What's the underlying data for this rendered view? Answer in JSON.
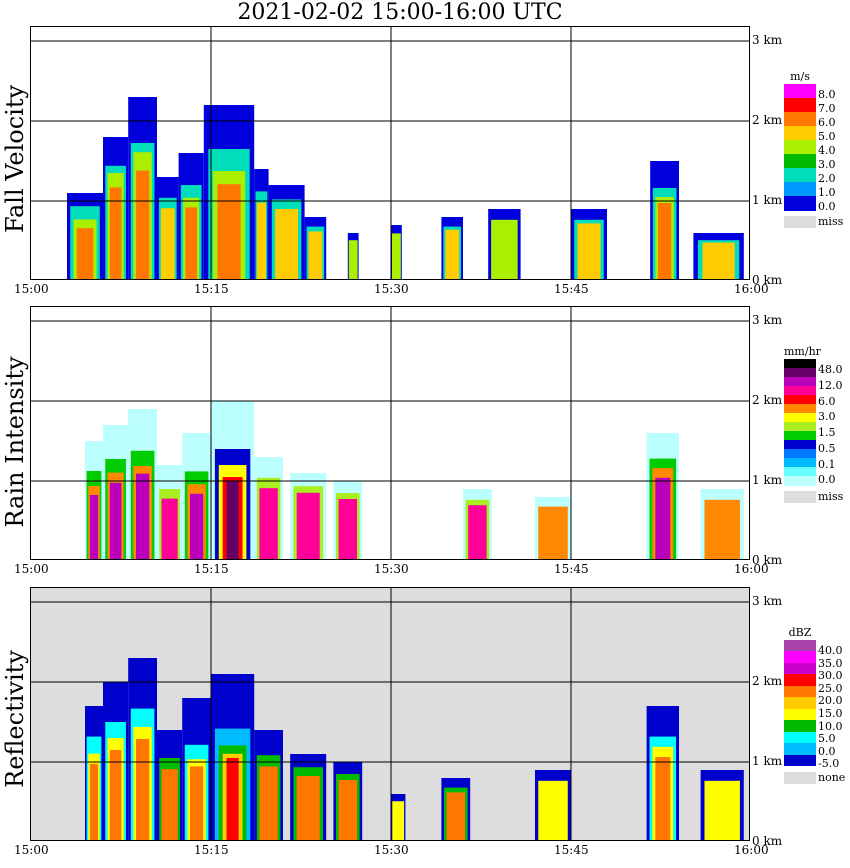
{
  "title": "2021-02-02   15:00-16:00 UTC",
  "x_ticks": [
    "15:00",
    "15:15",
    "15:30",
    "15:45",
    "16:00"
  ],
  "y_ticks": [
    "0 km",
    "1 km",
    "2 km",
    "3 km"
  ],
  "chart_data": [
    {
      "type": "heatmap",
      "title": "Fall Velocity",
      "unit": "m/s",
      "xlim": [
        "15:00",
        "16:00"
      ],
      "ylim_km": [
        0,
        3.1
      ],
      "legend": {
        "labels": [
          "8.0",
          "7.0",
          "6.0",
          "5.0",
          "4.0",
          "3.0",
          "2.0",
          "1.0",
          "0.0"
        ],
        "colors": [
          "#ff00ff",
          "#ff0000",
          "#ff7700",
          "#ffcc00",
          "#aaee00",
          "#00bb00",
          "#00ddbb",
          "#0099ff",
          "#0000dd"
        ],
        "missing_label": "miss"
      },
      "cells": [
        {
          "t0": 15.05,
          "t1": 15.1,
          "h": 1.1,
          "cs": [
            0.3,
            0.6,
            0.8
          ]
        },
        {
          "t0": 15.1,
          "t1": 15.135,
          "h": 1.8,
          "cs": [
            0.4,
            0.5,
            0.7
          ]
        },
        {
          "t0": 15.135,
          "t1": 15.175,
          "h": 2.3,
          "cs": [
            0.5,
            0.6,
            0.8
          ]
        },
        {
          "t0": 15.175,
          "t1": 15.205,
          "h": 1.3,
          "cs": [
            0.4,
            0.6
          ]
        },
        {
          "t0": 15.205,
          "t1": 15.24,
          "h": 1.6,
          "cs": [
            0.5,
            0.7,
            0.85
          ]
        },
        {
          "t0": 15.24,
          "t1": 15.31,
          "h": 2.2,
          "cs": [
            0.5,
            0.75,
            0.9
          ]
        },
        {
          "t0": 15.31,
          "t1": 15.33,
          "h": 1.4,
          "cs": [
            0.4,
            0.6
          ]
        },
        {
          "t0": 15.33,
          "t1": 15.38,
          "h": 1.2,
          "cs": [
            0.3,
            0.5
          ]
        },
        {
          "t0": 15.38,
          "t1": 15.41,
          "h": 0.8,
          "cs": [
            0.3,
            0.45
          ]
        },
        {
          "t0": 15.44,
          "t1": 15.455,
          "h": 0.6,
          "cs": [
            0.3
          ]
        },
        {
          "t0": 15.5,
          "t1": 15.515,
          "h": 0.7,
          "cs": [
            0.3
          ]
        },
        {
          "t0": 15.57,
          "t1": 15.6,
          "h": 0.8,
          "cs": [
            0.3,
            0.4
          ]
        },
        {
          "t0": 15.635,
          "t1": 15.68,
          "h": 0.9,
          "cs": [
            0.3
          ]
        },
        {
          "t0": 15.75,
          "t1": 15.8,
          "h": 0.9,
          "cs": [
            0.3,
            0.4
          ]
        },
        {
          "t0": 15.86,
          "t1": 15.9,
          "h": 1.5,
          "cs": [
            0.45,
            0.6,
            0.7
          ]
        },
        {
          "t0": 15.92,
          "t1": 15.99,
          "h": 0.6,
          "cs": [
            0.3,
            0.4
          ]
        }
      ]
    },
    {
      "type": "heatmap",
      "title": "Rain Intensity",
      "unit": "mm/hr",
      "xlim": [
        "15:00",
        "16:00"
      ],
      "ylim_km": [
        0,
        3.1
      ],
      "legend": {
        "labels": [
          "48.0",
          "12.0",
          "6.0",
          "3.0",
          "1.5",
          "0.5",
          "0.1",
          "0.0"
        ],
        "colors": [
          "#000000",
          "#660066",
          "#bb00bb",
          "#ff0099",
          "#ff0000",
          "#ff8800",
          "#ffff00",
          "#aaee22",
          "#00cc00",
          "#0000cc",
          "#0077ff",
          "#00bbff",
          "#66ffff",
          "#bbffff"
        ],
        "missing_label": "miss"
      },
      "cells": [
        {
          "t0": 15.075,
          "t1": 15.1,
          "h": 1.5,
          "cs": [
            0.5,
            0.75,
            0.9
          ]
        },
        {
          "t0": 15.1,
          "t1": 15.135,
          "h": 1.7,
          "cs": [
            0.5,
            0.7,
            0.85
          ]
        },
        {
          "t0": 15.135,
          "t1": 15.175,
          "h": 1.9,
          "cs": [
            0.55,
            0.75,
            0.85
          ]
        },
        {
          "t0": 15.175,
          "t1": 15.21,
          "h": 1.2,
          "cs": [
            0.5,
            0.7
          ]
        },
        {
          "t0": 15.21,
          "t1": 15.25,
          "h": 1.6,
          "cs": [
            0.6,
            0.8,
            0.95
          ]
        },
        {
          "t0": 15.25,
          "t1": 15.31,
          "h": 2.0,
          "cs": [
            0.6,
            0.8,
            0.95,
            1.0
          ]
        },
        {
          "t0": 15.31,
          "t1": 15.35,
          "h": 1.3,
          "cs": [
            0.4,
            0.6
          ]
        },
        {
          "t0": 15.36,
          "t1": 15.41,
          "h": 1.1,
          "cs": [
            0.3,
            0.45
          ]
        },
        {
          "t0": 15.42,
          "t1": 15.46,
          "h": 1.0,
          "cs": [
            0.3,
            0.45
          ]
        },
        {
          "t0": 15.6,
          "t1": 15.64,
          "h": 0.9,
          "cs": [
            0.3,
            0.45
          ]
        },
        {
          "t0": 15.7,
          "t1": 15.75,
          "h": 0.8,
          "cs": [
            0.3
          ]
        },
        {
          "t0": 15.855,
          "t1": 15.9,
          "h": 1.6,
          "cs": [
            0.4,
            0.55,
            0.7
          ]
        },
        {
          "t0": 15.93,
          "t1": 15.99,
          "h": 0.9,
          "cs": [
            0.3
          ]
        }
      ]
    },
    {
      "type": "heatmap",
      "title": "Reflectivity",
      "unit": "dBZ",
      "xlim": [
        "15:00",
        "16:00"
      ],
      "ylim_km": [
        0,
        3.1
      ],
      "legend": {
        "labels": [
          "40.0",
          "35.0",
          "30.0",
          "25.0",
          "20.0",
          "15.0",
          "10.0",
          "5.0",
          "0.0",
          "-5.0"
        ],
        "colors": [
          "#aa44aa",
          "#ff00ff",
          "#cc00cc",
          "#ff0000",
          "#ff7700",
          "#ffcc00",
          "#ffff00",
          "#00bb00",
          "#00ffff",
          "#00bbff",
          "#0000cc"
        ],
        "missing_label": "none"
      },
      "cells": [
        {
          "t0": 15.075,
          "t1": 15.1,
          "h": 1.7,
          "cs": [
            0.45,
            0.7,
            0.85
          ]
        },
        {
          "t0": 15.1,
          "t1": 15.135,
          "h": 2.0,
          "cs": [
            0.5,
            0.7,
            0.85
          ]
        },
        {
          "t0": 15.135,
          "t1": 15.175,
          "h": 2.3,
          "cs": [
            0.55,
            0.75,
            0.88
          ]
        },
        {
          "t0": 15.175,
          "t1": 15.21,
          "h": 1.4,
          "cs": [
            0.5,
            0.7
          ]
        },
        {
          "t0": 15.21,
          "t1": 15.25,
          "h": 1.8,
          "cs": [
            0.65,
            0.85,
            0.95
          ]
        },
        {
          "t0": 15.25,
          "t1": 15.31,
          "h": 2.1,
          "cs": [
            0.65,
            0.85,
            0.95,
            1.0
          ]
        },
        {
          "t0": 15.31,
          "t1": 15.35,
          "h": 1.4,
          "cs": [
            0.45,
            0.65
          ]
        },
        {
          "t0": 15.36,
          "t1": 15.41,
          "h": 1.1,
          "cs": [
            0.3,
            0.5
          ]
        },
        {
          "t0": 15.42,
          "t1": 15.46,
          "h": 1.0,
          "cs": [
            0.3,
            0.45
          ]
        },
        {
          "t0": 15.5,
          "t1": 15.52,
          "h": 0.6,
          "cs": [
            0.3
          ]
        },
        {
          "t0": 15.57,
          "t1": 15.61,
          "h": 0.8,
          "cs": [
            0.3,
            0.45
          ]
        },
        {
          "t0": 15.7,
          "t1": 15.75,
          "h": 0.9,
          "cs": [
            0.3
          ]
        },
        {
          "t0": 15.855,
          "t1": 15.9,
          "h": 1.7,
          "cs": [
            0.45,
            0.6,
            0.75
          ]
        },
        {
          "t0": 15.93,
          "t1": 15.99,
          "h": 0.9,
          "cs": [
            0.3
          ]
        }
      ]
    }
  ]
}
